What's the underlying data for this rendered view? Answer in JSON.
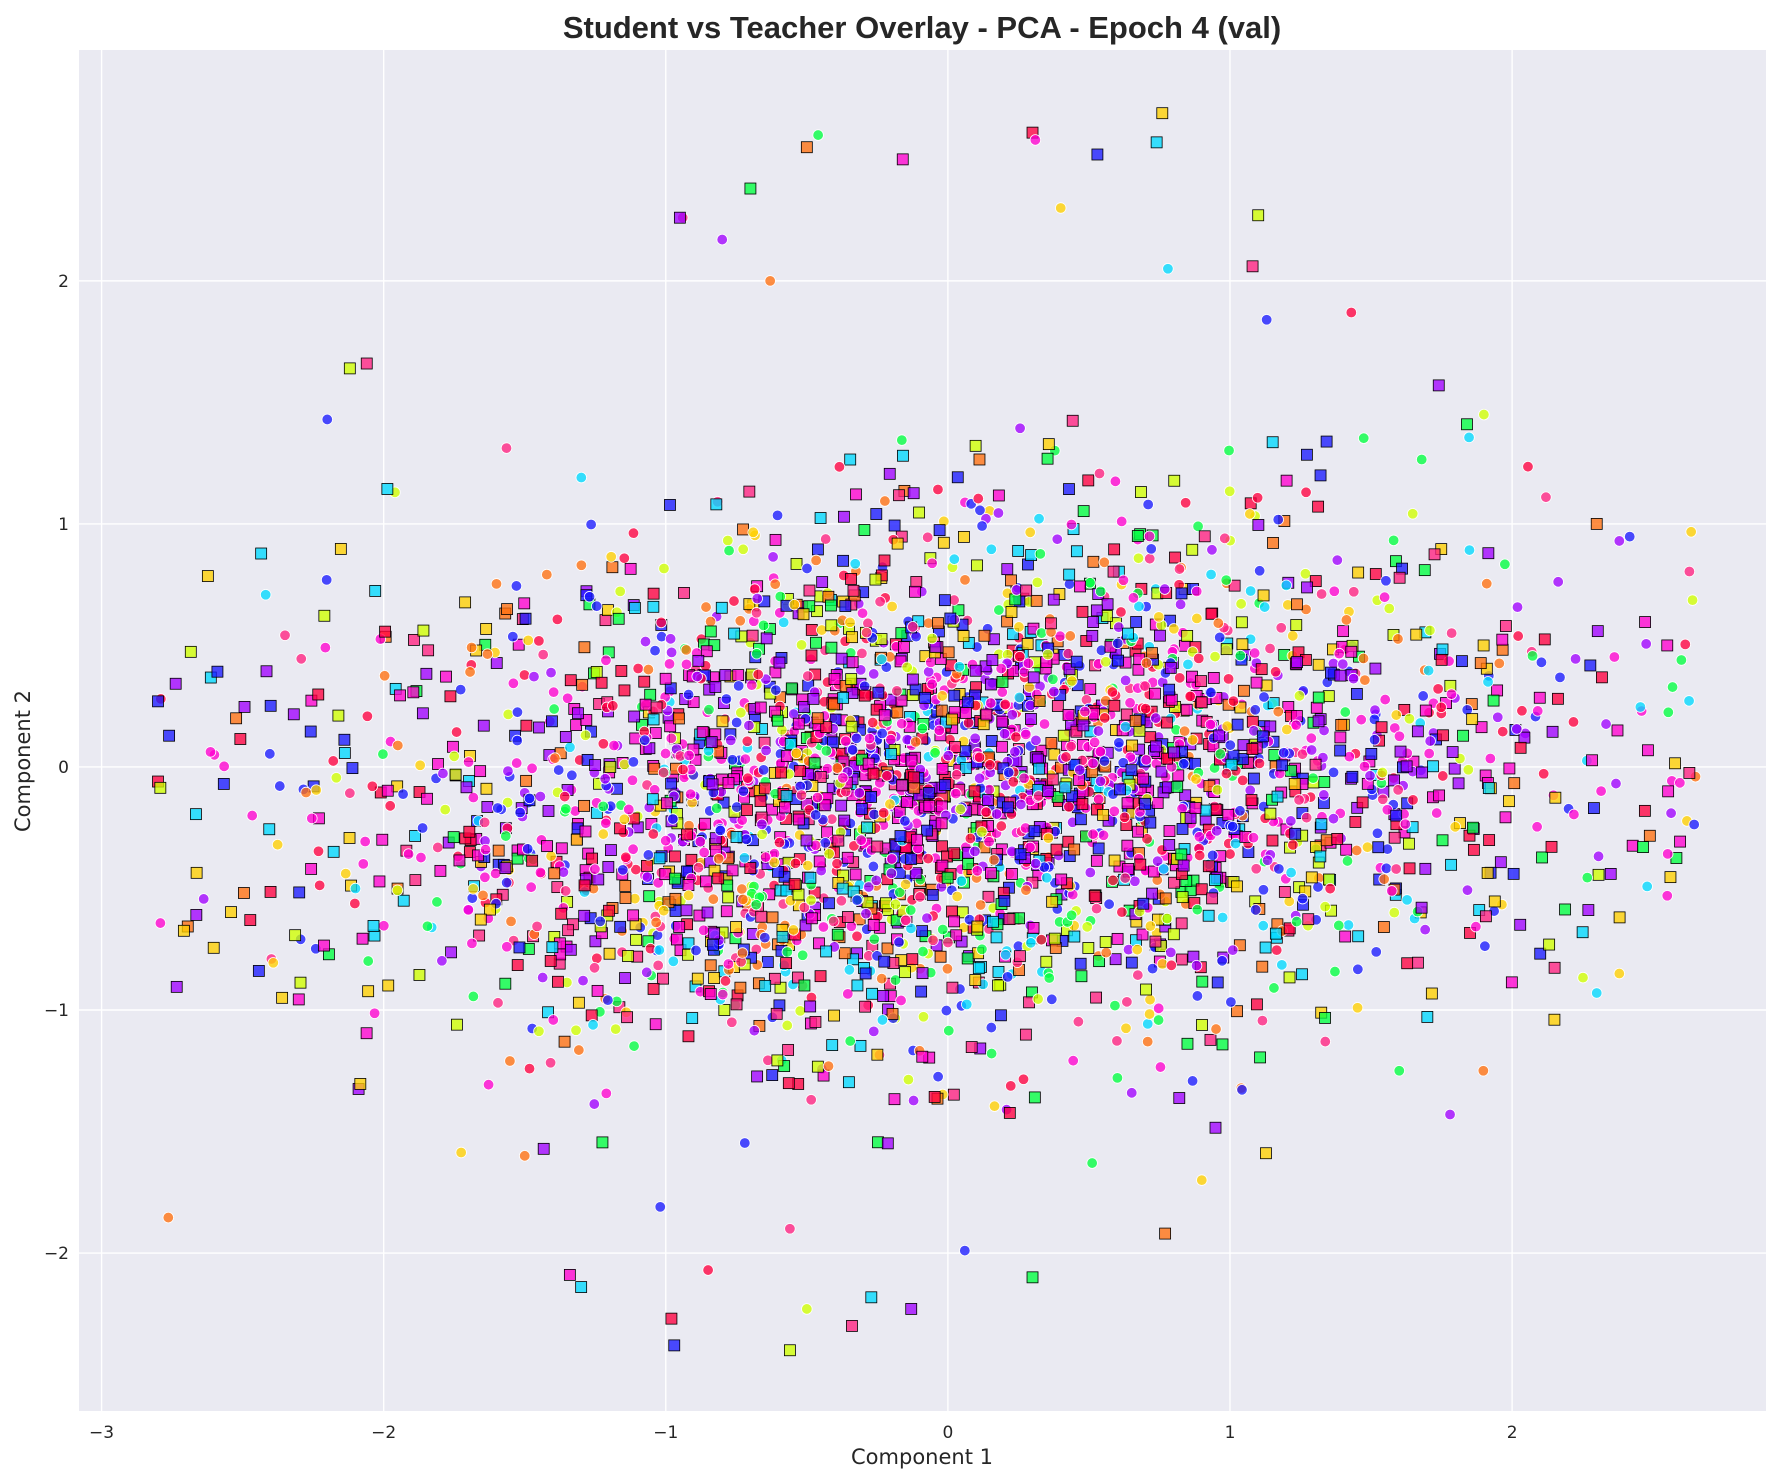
{
  "chart_data": {
    "type": "scatter",
    "title": "Student vs Teacher Overlay - PCA - Epoch 4 (val)",
    "xlabel": "Component 1",
    "ylabel": "Component 2",
    "xlim": [
      -3.08,
      2.9
    ],
    "ylim": [
      -2.65,
      2.95
    ],
    "xticks": [
      -3,
      -2,
      -1,
      0,
      1,
      2
    ],
    "yticks": [
      -2,
      -1,
      0,
      1,
      2
    ],
    "xtick_labels": [
      "−3",
      "−2",
      "−1",
      "0",
      "1",
      "2"
    ],
    "ytick_labels": [
      "−2",
      "−1",
      "0",
      "1",
      "2"
    ],
    "grid": true,
    "legend": "none",
    "style": {
      "plot_background": "#eaeaf2",
      "grid_color": "#ffffff",
      "marker_circle": "circle, white edge",
      "marker_square": "square, black edge",
      "palette": [
        "#ff0040",
        "#ff00d0",
        "#a000ff",
        "#1a1aff",
        "#00d8ff",
        "#00ff40",
        "#d0ff00",
        "#ffd000",
        "#ff7010",
        "#ff2080"
      ]
    },
    "point_cloud": {
      "estimated_point_count_per_group": 8000,
      "x_range": [
        -2.8,
        2.65
      ],
      "y_range": [
        -2.4,
        2.7
      ],
      "dense_core_x": [
        -2.6,
        2.5
      ],
      "dense_core_y": [
        -0.6,
        0.6
      ],
      "center": [
        0.0,
        0.0
      ]
    },
    "series": [
      {
        "marker": "circle",
        "sample_points": [
          [
            -2.79,
            0.28
          ],
          [
            -2.2,
            1.43
          ],
          [
            -1.96,
            1.13
          ],
          [
            -0.94,
            2.26
          ],
          [
            -0.8,
            2.17
          ],
          [
            -0.46,
            2.6
          ],
          [
            -0.63,
            2.0
          ],
          [
            0.31,
            2.58
          ],
          [
            0.78,
            2.05
          ],
          [
            0.4,
            2.3
          ],
          [
            1.43,
            1.87
          ],
          [
            1.13,
            1.84
          ],
          [
            1.9,
            1.45
          ],
          [
            2.12,
            1.11
          ],
          [
            2.38,
            0.93
          ],
          [
            2.6,
            0.44
          ],
          [
            2.65,
            -0.04
          ],
          [
            2.55,
            -0.53
          ],
          [
            2.3,
            -0.93
          ],
          [
            2.38,
            -0.85
          ],
          [
            -0.85,
            -2.07
          ],
          [
            0.06,
            -1.99
          ],
          [
            -0.5,
            -2.23
          ],
          [
            -0.56,
            -1.9
          ],
          [
            1.78,
            -1.43
          ],
          [
            1.6,
            -1.25
          ],
          [
            -1.5,
            -1.6
          ],
          [
            -2.6,
            0.05
          ],
          [
            -2.1,
            -0.5
          ],
          [
            0.9,
            -1.7
          ]
        ]
      },
      {
        "marker": "square",
        "sample_points": [
          [
            -2.8,
            -0.06
          ],
          [
            -2.8,
            0.27
          ],
          [
            -2.12,
            1.64
          ],
          [
            -2.06,
            1.66
          ],
          [
            -0.95,
            2.26
          ],
          [
            -0.7,
            2.38
          ],
          [
            -0.5,
            2.55
          ],
          [
            -0.16,
            2.5
          ],
          [
            0.74,
            2.57
          ],
          [
            0.76,
            2.69
          ],
          [
            0.3,
            2.61
          ],
          [
            0.53,
            2.52
          ],
          [
            1.1,
            2.27
          ],
          [
            1.08,
            2.06
          ],
          [
            1.74,
            1.57
          ],
          [
            1.84,
            1.41
          ],
          [
            2.3,
            1.0
          ],
          [
            2.55,
            0.5
          ],
          [
            2.25,
            -0.68
          ],
          [
            2.15,
            -1.04
          ],
          [
            -0.98,
            -2.27
          ],
          [
            -0.97,
            -2.38
          ],
          [
            -0.56,
            -2.4
          ],
          [
            -0.34,
            -2.3
          ],
          [
            -0.13,
            -2.23
          ],
          [
            0.3,
            -2.1
          ],
          [
            0.77,
            -1.92
          ],
          [
            -1.34,
            -2.09
          ],
          [
            -1.3,
            -2.14
          ],
          [
            -2.36,
            -0.95
          ]
        ]
      }
    ]
  }
}
